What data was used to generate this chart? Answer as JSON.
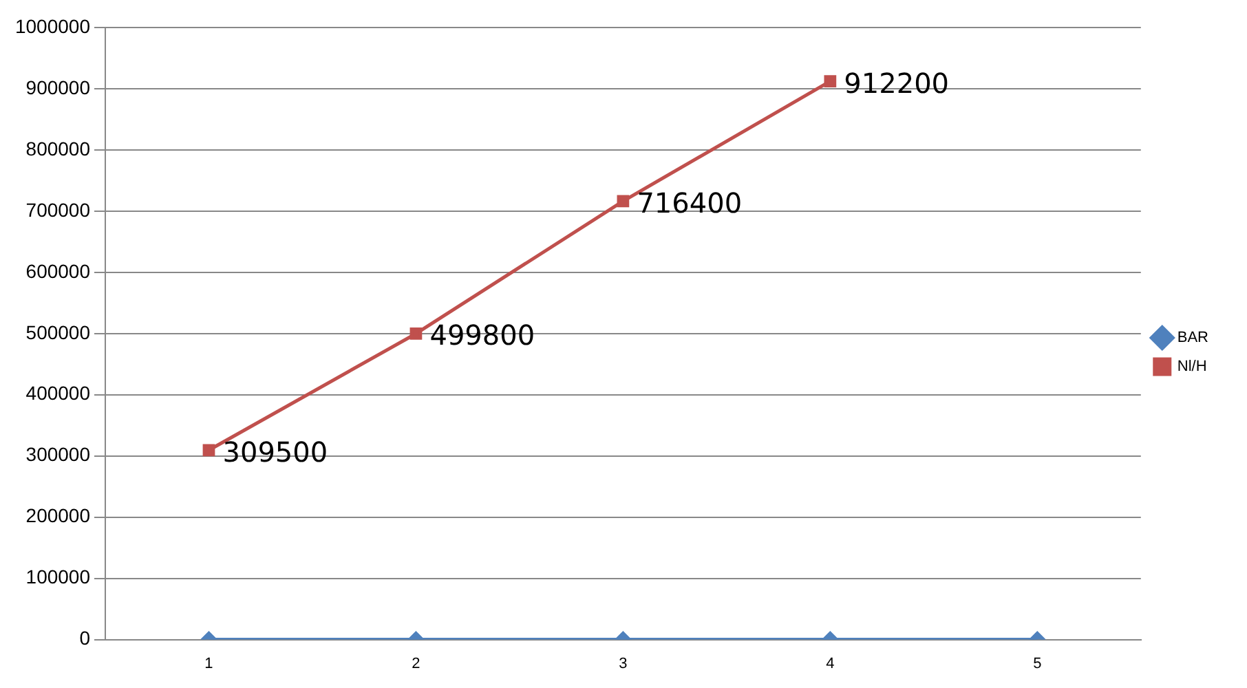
{
  "chart_data": {
    "type": "line",
    "categories": [
      "1",
      "2",
      "3",
      "4",
      "5"
    ],
    "series": [
      {
        "name": "BAR",
        "color": "#4f81bd",
        "marker": "diamond",
        "values": [
          0,
          0,
          0,
          0,
          0
        ]
      },
      {
        "name": "Nl/H",
        "color": "#c0504d",
        "marker": "square",
        "values": [
          309500,
          499800,
          716400,
          912200,
          null
        ],
        "value_labels": [
          "309500",
          "499800",
          "716400",
          "912200",
          null
        ]
      }
    ],
    "ylim": [
      0,
      1000000
    ],
    "yticks": [
      0,
      100000,
      200000,
      300000,
      400000,
      500000,
      600000,
      700000,
      800000,
      900000,
      1000000
    ],
    "grid": "y",
    "legend": "right"
  }
}
